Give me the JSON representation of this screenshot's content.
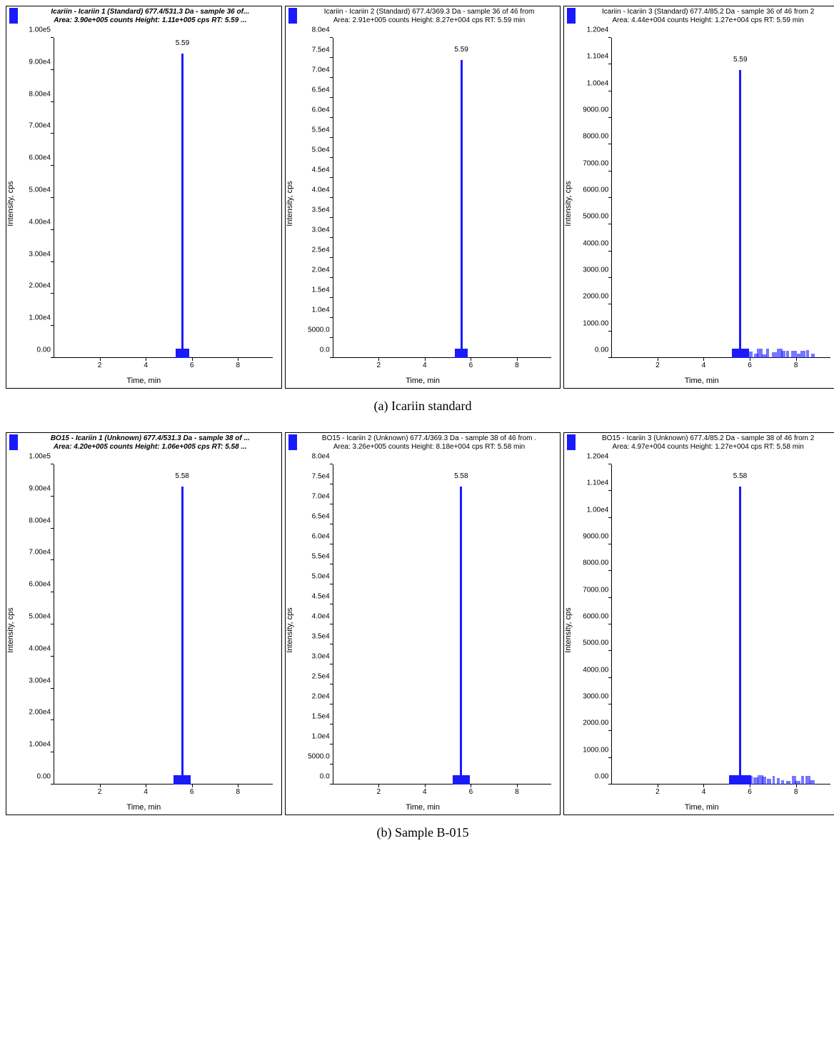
{
  "captions": {
    "a": "(a) Icariin standard",
    "b": "(b) Sample B-015"
  },
  "axis_labels": {
    "y": "Intensity, cps",
    "x": "Time, min"
  },
  "colors": {
    "peak": "#1a1aff",
    "axis": "#000000",
    "background": "#ffffff"
  },
  "x_ticks": [
    2,
    4,
    6,
    8
  ],
  "x_max": 9.5,
  "rows": [
    {
      "row_id": "a",
      "panels": [
        {
          "id": "a1",
          "bold": true,
          "title": "Icariin - Icariin 1 (Standard) 677.4/531.3 Da - sample 36 of...",
          "subtitle": "Area: 3.90e+005 counts  Height: 1.11e+005 cps  RT: 5.59 ...",
          "peak_rt": 5.59,
          "peak_label": "5.59",
          "peak_height_pct": 95,
          "y_ticks": [
            "0.00",
            "1.00e4",
            "2.00e4",
            "3.00e4",
            "4.00e4",
            "5.00e4",
            "6.00e4",
            "7.00e4",
            "8.00e4",
            "9.00e4",
            "1.00e5"
          ],
          "peak_base_width_pct": 6,
          "noise_right": false
        },
        {
          "id": "a2",
          "bold": false,
          "title": "Icariin - Icariin 2 (Standard) 677.4/369.3 Da - sample 36 of 46 from",
          "subtitle": "Area: 2.91e+005 counts  Height: 8.27e+004 cps  RT: 5.59 min",
          "peak_rt": 5.59,
          "peak_label": "5.59",
          "peak_height_pct": 93,
          "y_ticks": [
            "0.0",
            "5000.0",
            "1.0e4",
            "1.5e4",
            "2.0e4",
            "2.5e4",
            "3.0e4",
            "3.5e4",
            "4.0e4",
            "4.5e4",
            "5.0e4",
            "5.5e4",
            "6.0e4",
            "6.5e4",
            "7.0e4",
            "7.5e4",
            "8.0e4"
          ],
          "peak_base_width_pct": 6,
          "noise_right": false
        },
        {
          "id": "a3",
          "bold": false,
          "title": "Icariin - Icariin 3 (Standard) 677.4/85.2 Da - sample 36 of 46 from 2",
          "subtitle": "Area: 4.44e+004 counts  Height: 1.27e+004 cps  RT: 5.59 min",
          "peak_rt": 5.59,
          "peak_label": "5.59",
          "peak_height_pct": 90,
          "y_ticks": [
            "0.00",
            "1000.00",
            "2000.00",
            "3000.00",
            "4000.00",
            "5000.00",
            "6000.00",
            "7000.00",
            "8000.00",
            "9000.00",
            "1.00e4",
            "1.10e4",
            "1.20e4"
          ],
          "peak_base_width_pct": 8,
          "noise_right": true
        }
      ]
    },
    {
      "row_id": "b",
      "panels": [
        {
          "id": "b1",
          "bold": true,
          "title": "BO15 - Icariin 1 (Unknown) 677.4/531.3 Da - sample 38 of ...",
          "subtitle": "Area: 4.20e+005 counts  Height: 1.06e+005 cps  RT: 5.58 ...",
          "peak_rt": 5.58,
          "peak_label": "5.58",
          "peak_height_pct": 93,
          "y_ticks": [
            "0.00",
            "1.00e4",
            "2.00e4",
            "3.00e4",
            "4.00e4",
            "5.00e4",
            "6.00e4",
            "7.00e4",
            "8.00e4",
            "9.00e4",
            "1.00e5"
          ],
          "peak_base_width_pct": 8,
          "noise_right": false
        },
        {
          "id": "b2",
          "bold": false,
          "title": "BO15 - Icariin 2 (Unknown) 677.4/369.3 Da - sample 38 of 46 from .",
          "subtitle": "Area: 3.26e+005 counts  Height: 8.18e+004 cps  RT: 5.58 min",
          "peak_rt": 5.58,
          "peak_label": "5.58",
          "peak_height_pct": 93,
          "y_ticks": [
            "0.0",
            "5000.0",
            "1.0e4",
            "1.5e4",
            "2.0e4",
            "2.5e4",
            "3.0e4",
            "3.5e4",
            "4.0e4",
            "4.5e4",
            "5.0e4",
            "5.5e4",
            "6.0e4",
            "6.5e4",
            "7.0e4",
            "7.5e4",
            "8.0e4"
          ],
          "peak_base_width_pct": 8,
          "noise_right": false
        },
        {
          "id": "b3",
          "bold": false,
          "title": "BO15 - Icariin 3 (Unknown) 677.4/85.2 Da - sample 38 of 46 from 2",
          "subtitle": "Area: 4.97e+004 counts  Height: 1.27e+004 cps  RT: 5.58 min",
          "peak_rt": 5.58,
          "peak_label": "5.58",
          "peak_height_pct": 93,
          "y_ticks": [
            "0.00",
            "1000.00",
            "2000.00",
            "3000.00",
            "4000.00",
            "5000.00",
            "6000.00",
            "7000.00",
            "8000.00",
            "9000.00",
            "1.00e4",
            "1.10e4",
            "1.20e4"
          ],
          "peak_base_width_pct": 10,
          "noise_right": true
        }
      ]
    }
  ]
}
